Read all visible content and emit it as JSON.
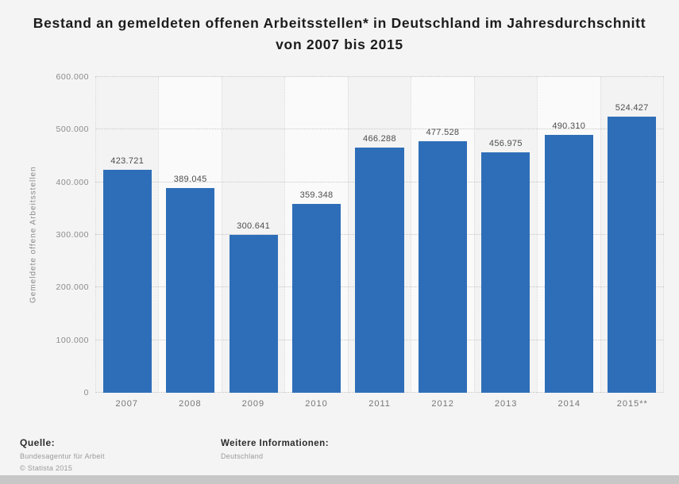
{
  "title": "Bestand an gemeldeten offenen Arbeitsstellen* in Deutschland im Jahresdurchschnitt von 2007 bis 2015",
  "chart_data": {
    "type": "bar",
    "categories": [
      "2007",
      "2008",
      "2009",
      "2010",
      "2011",
      "2012",
      "2013",
      "2014",
      "2015**"
    ],
    "values": [
      423721,
      389045,
      300641,
      359348,
      466288,
      477528,
      456975,
      490310,
      524427
    ],
    "value_labels": [
      "423.721",
      "389.045",
      "300.641",
      "359.348",
      "466.288",
      "477.528",
      "456.975",
      "490.310",
      "524.427"
    ],
    "title": "Bestand an gemeldeten offenen Arbeitsstellen* in Deutschland im Jahresdurchschnitt von 2007 bis 2015",
    "xlabel": "",
    "ylabel": "Gemeldete offene Arbeitsstellen",
    "ylim": [
      0,
      600000
    ],
    "ytick_labels": [
      "0",
      "100.000",
      "200.000",
      "300.000",
      "400.000",
      "500.000",
      "600.000"
    ],
    "grid": "horizontal dotted",
    "legend": "none",
    "bar_color": "#2e6eb8"
  },
  "footer": {
    "source_label": "Quelle:",
    "source": "Bundesagentur für Arbeit",
    "copyright": "© Statista 2015",
    "more_info_label": "Weitere Informationen:",
    "more_info": "Deutschland"
  }
}
